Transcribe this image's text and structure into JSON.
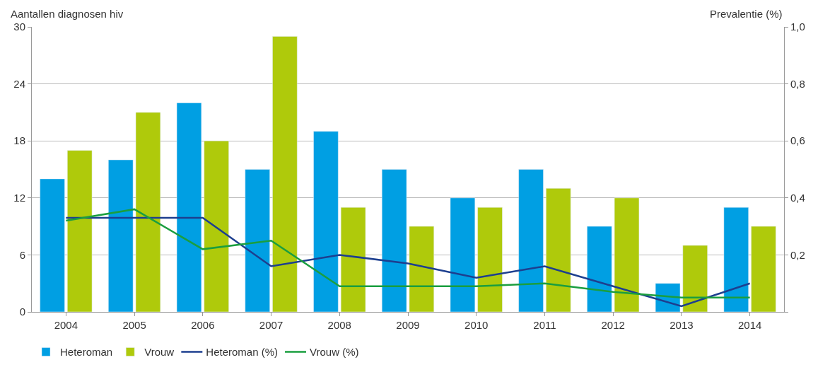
{
  "chart_data": {
    "type": "bar",
    "ylabel": "Aantallen diagnosen hiv",
    "y2label": "Prevalentie (%)",
    "categories": [
      "2004",
      "2005",
      "2006",
      "2007",
      "2008",
      "2009",
      "2010",
      "2011",
      "2012",
      "2013",
      "2014"
    ],
    "series": [
      {
        "name": "Heteroman",
        "color": "#009fe3",
        "values": [
          14,
          16,
          22,
          15,
          19,
          15,
          12,
          15,
          9,
          3,
          11
        ]
      },
      {
        "name": "Vrouw",
        "color": "#afca0b",
        "values": [
          17,
          21,
          18,
          29,
          11,
          9,
          11,
          13,
          12,
          7,
          9
        ]
      },
      {
        "name": "Heteroman (%)",
        "type": "line",
        "axis": "y2",
        "color": "#1d3f8f",
        "values": [
          0.33,
          0.33,
          0.33,
          0.16,
          0.2,
          0.17,
          0.12,
          0.16,
          0.09,
          0.02,
          0.1
        ]
      },
      {
        "name": "Vrouw (%)",
        "type": "line",
        "axis": "y2",
        "color": "#1a9e3f",
        "values": [
          0.32,
          0.36,
          0.22,
          0.25,
          0.09,
          0.09,
          0.09,
          0.1,
          0.07,
          0.05,
          0.05
        ]
      }
    ],
    "ylim": [
      0,
      30
    ],
    "yticks": [
      0,
      6,
      12,
      18,
      24,
      30
    ],
    "y2lim": [
      0,
      1.0
    ],
    "y2ticks": [
      {
        "value": 0,
        "label": null
      },
      {
        "value": 0.2,
        "label": "0,2"
      },
      {
        "value": 0.4,
        "label": "0,4"
      },
      {
        "value": 0.6,
        "label": "0,6"
      },
      {
        "value": 0.8,
        "label": "0,8"
      },
      {
        "value": 1.0,
        "label": "1,0"
      }
    ],
    "grid": "y",
    "legend": "bottom left",
    "marker": "none",
    "line_style": "solid"
  }
}
